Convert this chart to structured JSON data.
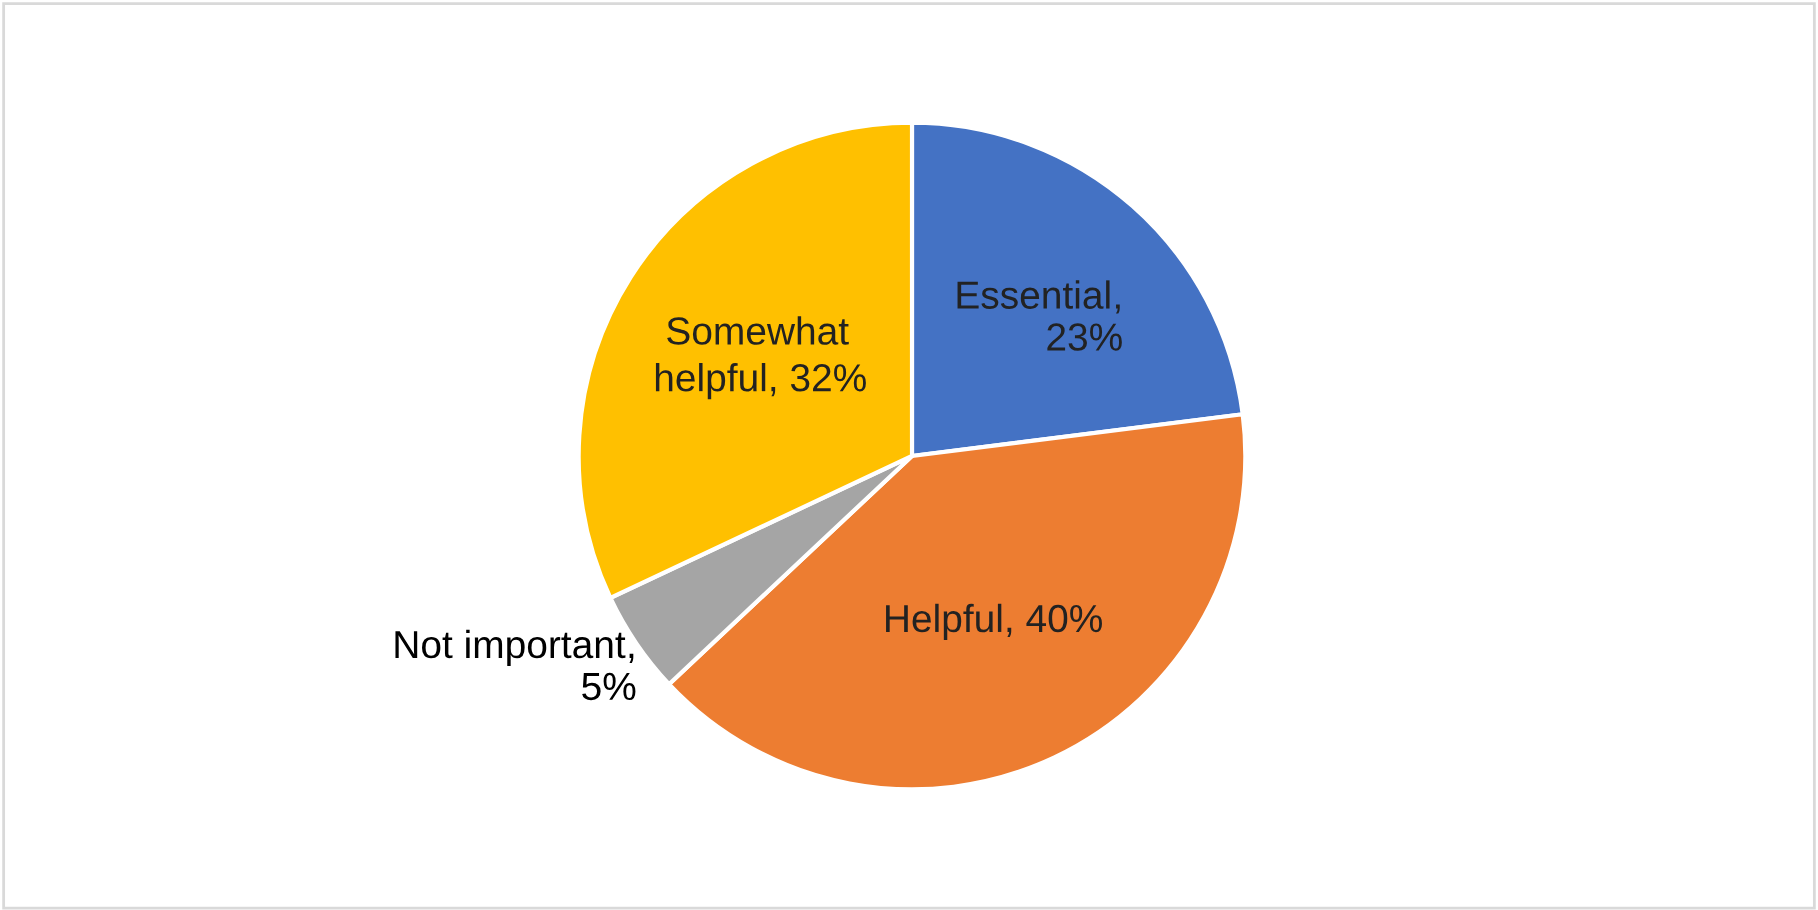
{
  "chart_data": {
    "type": "pie",
    "categories": [
      "Essential",
      "Helpful",
      "Not important",
      "Somewhat helpful"
    ],
    "values": [
      23,
      40,
      5,
      32
    ],
    "colors": [
      "#4472c4",
      "#ed7d31",
      "#a5a5a5",
      "#ffc000"
    ],
    "value_labels": [
      ",\n23%",
      ", 40%",
      ",\n5%",
      ", 32%"
    ],
    "legend": false
  }
}
